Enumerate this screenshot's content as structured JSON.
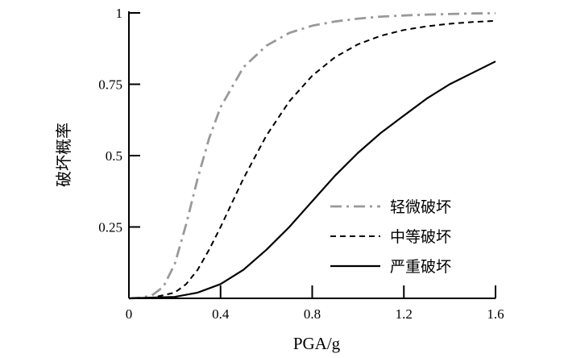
{
  "chart_data": {
    "type": "line",
    "xlabel": "PGA/g",
    "ylabel": "破坏概率",
    "xlim": [
      0,
      1.6
    ],
    "ylim": [
      0,
      1
    ],
    "x_ticks": [
      "0",
      "0.4",
      "0.8",
      "1.2",
      "1.6"
    ],
    "y_ticks": [
      "0.25",
      "0.5",
      "0.75",
      "1"
    ],
    "grid": false,
    "legend_position": "lower-right",
    "series": [
      {
        "name": "轻微破坏",
        "color": "#999999",
        "dash": "dashdot",
        "x": [
          0,
          0.05,
          0.1,
          0.15,
          0.2,
          0.25,
          0.3,
          0.35,
          0.4,
          0.5,
          0.6,
          0.7,
          0.8,
          0.9,
          1.0,
          1.1,
          1.2,
          1.3,
          1.4,
          1.5,
          1.6
        ],
        "y": [
          0,
          0.002,
          0.01,
          0.04,
          0.12,
          0.26,
          0.42,
          0.56,
          0.67,
          0.81,
          0.885,
          0.93,
          0.955,
          0.97,
          0.98,
          0.987,
          0.991,
          0.994,
          0.996,
          0.998,
          0.999
        ]
      },
      {
        "name": "中等破坏",
        "color": "#000000",
        "dash": "dashed",
        "x": [
          0,
          0.1,
          0.2,
          0.25,
          0.3,
          0.35,
          0.4,
          0.5,
          0.6,
          0.7,
          0.8,
          0.9,
          1.0,
          1.1,
          1.2,
          1.3,
          1.4,
          1.5,
          1.6
        ],
        "y": [
          0,
          0.002,
          0.02,
          0.05,
          0.1,
          0.17,
          0.25,
          0.42,
          0.57,
          0.69,
          0.78,
          0.845,
          0.89,
          0.92,
          0.94,
          0.953,
          0.962,
          0.968,
          0.972
        ]
      },
      {
        "name": "严重破坏",
        "color": "#000000",
        "dash": "solid",
        "x": [
          0,
          0.2,
          0.3,
          0.4,
          0.5,
          0.6,
          0.7,
          0.8,
          0.9,
          1.0,
          1.1,
          1.2,
          1.3,
          1.4,
          1.5,
          1.6
        ],
        "y": [
          0,
          0.005,
          0.02,
          0.05,
          0.1,
          0.17,
          0.25,
          0.34,
          0.43,
          0.51,
          0.58,
          0.64,
          0.7,
          0.75,
          0.79,
          0.83
        ]
      }
    ]
  }
}
